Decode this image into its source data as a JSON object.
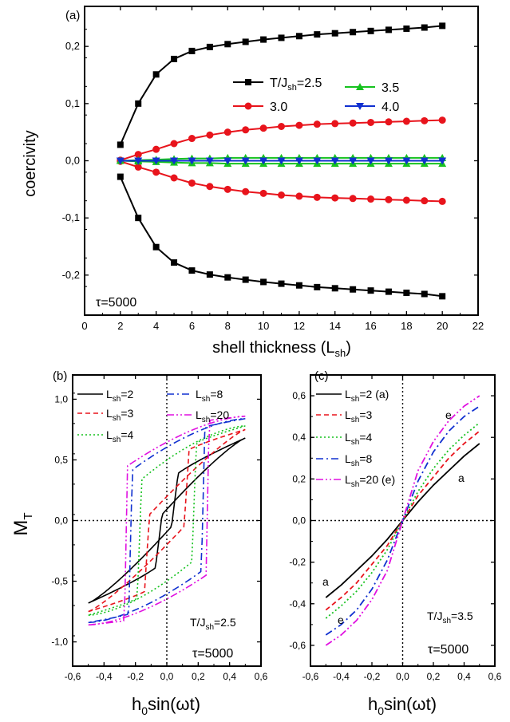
{
  "chart_data": [
    {
      "panel": "(a)",
      "type": "line",
      "xlabel": "shell thickness (L",
      "xlabel_sub": "sh",
      "xlabel_end": ")",
      "ylabel": "coercivity",
      "annotation": "τ=5000",
      "xlim": [
        0,
        22
      ],
      "ylim": [
        -0.27,
        0.27
      ],
      "xticks": [
        0,
        2,
        4,
        6,
        8,
        10,
        12,
        14,
        16,
        18,
        20,
        22
      ],
      "xtick_labels": [
        "0",
        "2",
        "4",
        "6",
        "8",
        "10",
        "12",
        "14",
        "16",
        "18",
        "20",
        "22"
      ],
      "yticks": [
        -0.2,
        -0.1,
        0.0,
        0.1,
        0.2
      ],
      "ytick_labels": [
        "-0,2",
        "-0,1",
        "0,0",
        "0,1",
        "0,2"
      ],
      "x": [
        2,
        3,
        4,
        5,
        6,
        7,
        8,
        9,
        10,
        11,
        12,
        13,
        14,
        15,
        16,
        17,
        18,
        19,
        20
      ],
      "series": [
        {
          "name": "T/J",
          "name_sub": "sh",
          "name_end": "=2.5",
          "color": "#000000",
          "marker": "square",
          "values": [
            0.028,
            0.1,
            0.151,
            0.178,
            0.192,
            0.199,
            0.204,
            0.208,
            0.212,
            0.215,
            0.218,
            0.221,
            0.223,
            0.225,
            0.227,
            0.229,
            0.231,
            0.233,
            0.236
          ]
        },
        {
          "name": "",
          "color": "#000000",
          "marker": "square",
          "values": [
            -0.028,
            -0.1,
            -0.151,
            -0.178,
            -0.192,
            -0.199,
            -0.204,
            -0.208,
            -0.212,
            -0.215,
            -0.218,
            -0.221,
            -0.223,
            -0.225,
            -0.227,
            -0.229,
            -0.231,
            -0.233,
            -0.237
          ]
        },
        {
          "name": "3.0",
          "color": "#e8141c",
          "marker": "circle",
          "values": [
            0.001,
            0.011,
            0.02,
            0.03,
            0.039,
            0.045,
            0.05,
            0.054,
            0.057,
            0.06,
            0.062,
            0.064,
            0.065,
            0.066,
            0.067,
            0.068,
            0.069,
            0.07,
            0.071
          ]
        },
        {
          "name": "",
          "color": "#e8141c",
          "marker": "circle",
          "values": [
            -0.001,
            -0.011,
            -0.02,
            -0.03,
            -0.039,
            -0.045,
            -0.05,
            -0.054,
            -0.057,
            -0.06,
            -0.062,
            -0.064,
            -0.065,
            -0.066,
            -0.067,
            -0.068,
            -0.069,
            -0.07,
            -0.071
          ]
        },
        {
          "name": "3.5",
          "color": "#16c21f",
          "marker": "triangle-up",
          "values": [
            0.0,
            0.001,
            0.002,
            0.003,
            0.004,
            0.004,
            0.005,
            0.005,
            0.005,
            0.005,
            0.005,
            0.005,
            0.005,
            0.005,
            0.005,
            0.005,
            0.005,
            0.005,
            0.005
          ]
        },
        {
          "name": "",
          "color": "#16c21f",
          "marker": "triangle-up",
          "values": [
            0.0,
            -0.001,
            -0.002,
            -0.003,
            -0.004,
            -0.004,
            -0.005,
            -0.005,
            -0.005,
            -0.005,
            -0.005,
            -0.005,
            -0.005,
            -0.005,
            -0.005,
            -0.005,
            -0.005,
            -0.005,
            -0.005
          ]
        },
        {
          "name": "4.0",
          "color": "#1030d0",
          "marker": "triangle-down",
          "values": [
            0.0,
            0.0,
            0.0,
            0.0,
            0.0,
            0.0,
            0.0,
            0.0,
            0.0,
            0.0,
            0.0,
            0.0,
            0.0,
            0.0,
            0.0,
            0.0,
            0.0,
            0.0,
            0.0
          ]
        }
      ]
    },
    {
      "panel": "(b)",
      "type": "line",
      "xlabel": "h",
      "xlabel_sub": "0",
      "xlabel_end": "sin(ωt)",
      "ylabel": "M",
      "ylabel_sub": "T",
      "annotation_1": "T/J",
      "annotation_1_sub": "sh",
      "annotation_1_end": "=2.5",
      "annotation_2": "τ=5000",
      "xlim": [
        -0.6,
        0.6
      ],
      "ylim": [
        -1.2,
        1.2
      ],
      "xticks": [
        -0.6,
        -0.4,
        -0.2,
        0.0,
        0.2,
        0.4,
        0.6
      ],
      "xtick_labels": [
        "-0,6",
        "-0,4",
        "-0,2",
        "0,0",
        "0,2",
        "0,4",
        "0,6"
      ],
      "yticks": [
        -1.0,
        -0.5,
        0.0,
        0.5,
        1.0
      ],
      "ytick_labels": [
        "-1,0",
        "-0,5",
        "0,0",
        "0,5",
        "1,0"
      ],
      "legend": [
        "L",
        "L",
        "L",
        "L",
        "L"
      ],
      "legend_sub": [
        "sh",
        "sh",
        "sh",
        "sh",
        "sh"
      ],
      "legend_end": [
        "=2",
        "=3",
        "=4",
        "=8",
        "=20"
      ],
      "series": [
        {
          "color": "#000000",
          "dash": "solid",
          "hc": 0.03,
          "ms": 0.68,
          "ma": 0.34,
          "k": 0.035
        },
        {
          "color": "#e8141c",
          "dash": "dash",
          "hc": 0.11,
          "ms": 0.75,
          "ma": 0.56,
          "k": 0.025
        },
        {
          "color": "#16c21f",
          "dash": "dot",
          "hc": 0.16,
          "ms": 0.78,
          "ma": 0.62,
          "k": 0.016
        },
        {
          "color": "#1030d0",
          "dash": "dashdot",
          "hc": 0.22,
          "ms": 0.84,
          "ma": 0.76,
          "k": 0.012
        },
        {
          "color": "#e010e0",
          "dash": "dashdotdot",
          "hc": 0.25,
          "ms": 0.86,
          "ma": 0.82,
          "k": 0.01
        }
      ]
    },
    {
      "panel": "(c)",
      "type": "line",
      "xlabel": "h",
      "xlabel_sub": "0",
      "xlabel_end": "sin(ωt)",
      "annotation_1": "T/J",
      "annotation_1_sub": "sh",
      "annotation_1_end": "=3.5",
      "annotation_2": "τ=5000",
      "curve_labels": {
        "a_top": "a",
        "a_bottom": "a",
        "e_top": "e",
        "e_bottom": "e"
      },
      "xlim": [
        -0.6,
        0.6
      ],
      "ylim": [
        -0.7,
        0.7
      ],
      "xticks": [
        -0.6,
        -0.4,
        -0.2,
        0.0,
        0.2,
        0.4,
        0.6
      ],
      "xtick_labels": [
        "-0,6",
        "-0,4",
        "-0,2",
        "0,0",
        "0,2",
        "0,4",
        "0,6"
      ],
      "yticks": [
        -0.6,
        -0.4,
        -0.2,
        0.0,
        0.2,
        0.4,
        0.6
      ],
      "ytick_labels": [
        "-0,6",
        "-0,4",
        "-0,2",
        "0,0",
        "0,2",
        "0,4",
        "0,6"
      ],
      "legend": [
        "L",
        "L",
        "L",
        "L",
        "L"
      ],
      "legend_sub": [
        "sh",
        "sh",
        "sh",
        "sh",
        "sh"
      ],
      "legend_end": [
        "=2 (a)",
        "=3",
        "=4",
        "=8",
        "=20 (e)"
      ],
      "series": [
        {
          "color": "#000000",
          "dash": "solid",
          "slope": 1.05,
          "ms": 0.58,
          "x": [
            -0.5,
            -0.4,
            -0.3,
            -0.2,
            -0.1,
            0.0,
            0.1,
            0.2,
            0.3,
            0.4,
            0.5
          ],
          "values": [
            -0.37,
            -0.31,
            -0.24,
            -0.17,
            -0.09,
            0.0,
            0.09,
            0.17,
            0.24,
            0.31,
            0.37
          ]
        },
        {
          "color": "#e8141c",
          "dash": "dash",
          "slope": 1.35,
          "ms": 0.6,
          "x": [
            -0.5,
            -0.4,
            -0.3,
            -0.2,
            -0.1,
            0.0,
            0.1,
            0.2,
            0.3,
            0.4,
            0.5
          ],
          "values": [
            -0.43,
            -0.37,
            -0.3,
            -0.21,
            -0.12,
            0.0,
            0.12,
            0.21,
            0.3,
            0.37,
            0.43
          ]
        },
        {
          "color": "#16c21f",
          "dash": "dot",
          "slope": 1.65,
          "ms": 0.62,
          "x": [
            -0.5,
            -0.4,
            -0.3,
            -0.2,
            -0.1,
            0.0,
            0.1,
            0.2,
            0.3,
            0.4,
            0.5
          ],
          "values": [
            -0.47,
            -0.41,
            -0.34,
            -0.25,
            -0.14,
            0.0,
            0.14,
            0.25,
            0.34,
            0.41,
            0.47
          ]
        },
        {
          "color": "#1030d0",
          "dash": "dashdot",
          "slope": 2.3,
          "ms": 0.64,
          "x": [
            -0.5,
            -0.4,
            -0.3,
            -0.2,
            -0.1,
            0.0,
            0.1,
            0.2,
            0.3,
            0.4,
            0.5
          ],
          "values": [
            -0.55,
            -0.5,
            -0.43,
            -0.33,
            -0.19,
            0.0,
            0.19,
            0.33,
            0.43,
            0.5,
            0.55
          ]
        },
        {
          "color": "#e010e0",
          "dash": "dashdotdot",
          "slope": 3.0,
          "ms": 0.65,
          "x": [
            -0.5,
            -0.4,
            -0.3,
            -0.2,
            -0.1,
            0.0,
            0.1,
            0.2,
            0.3,
            0.4,
            0.5
          ],
          "values": [
            -0.6,
            -0.55,
            -0.48,
            -0.38,
            -0.24,
            0.0,
            0.24,
            0.38,
            0.48,
            0.55,
            0.6
          ]
        }
      ]
    }
  ]
}
